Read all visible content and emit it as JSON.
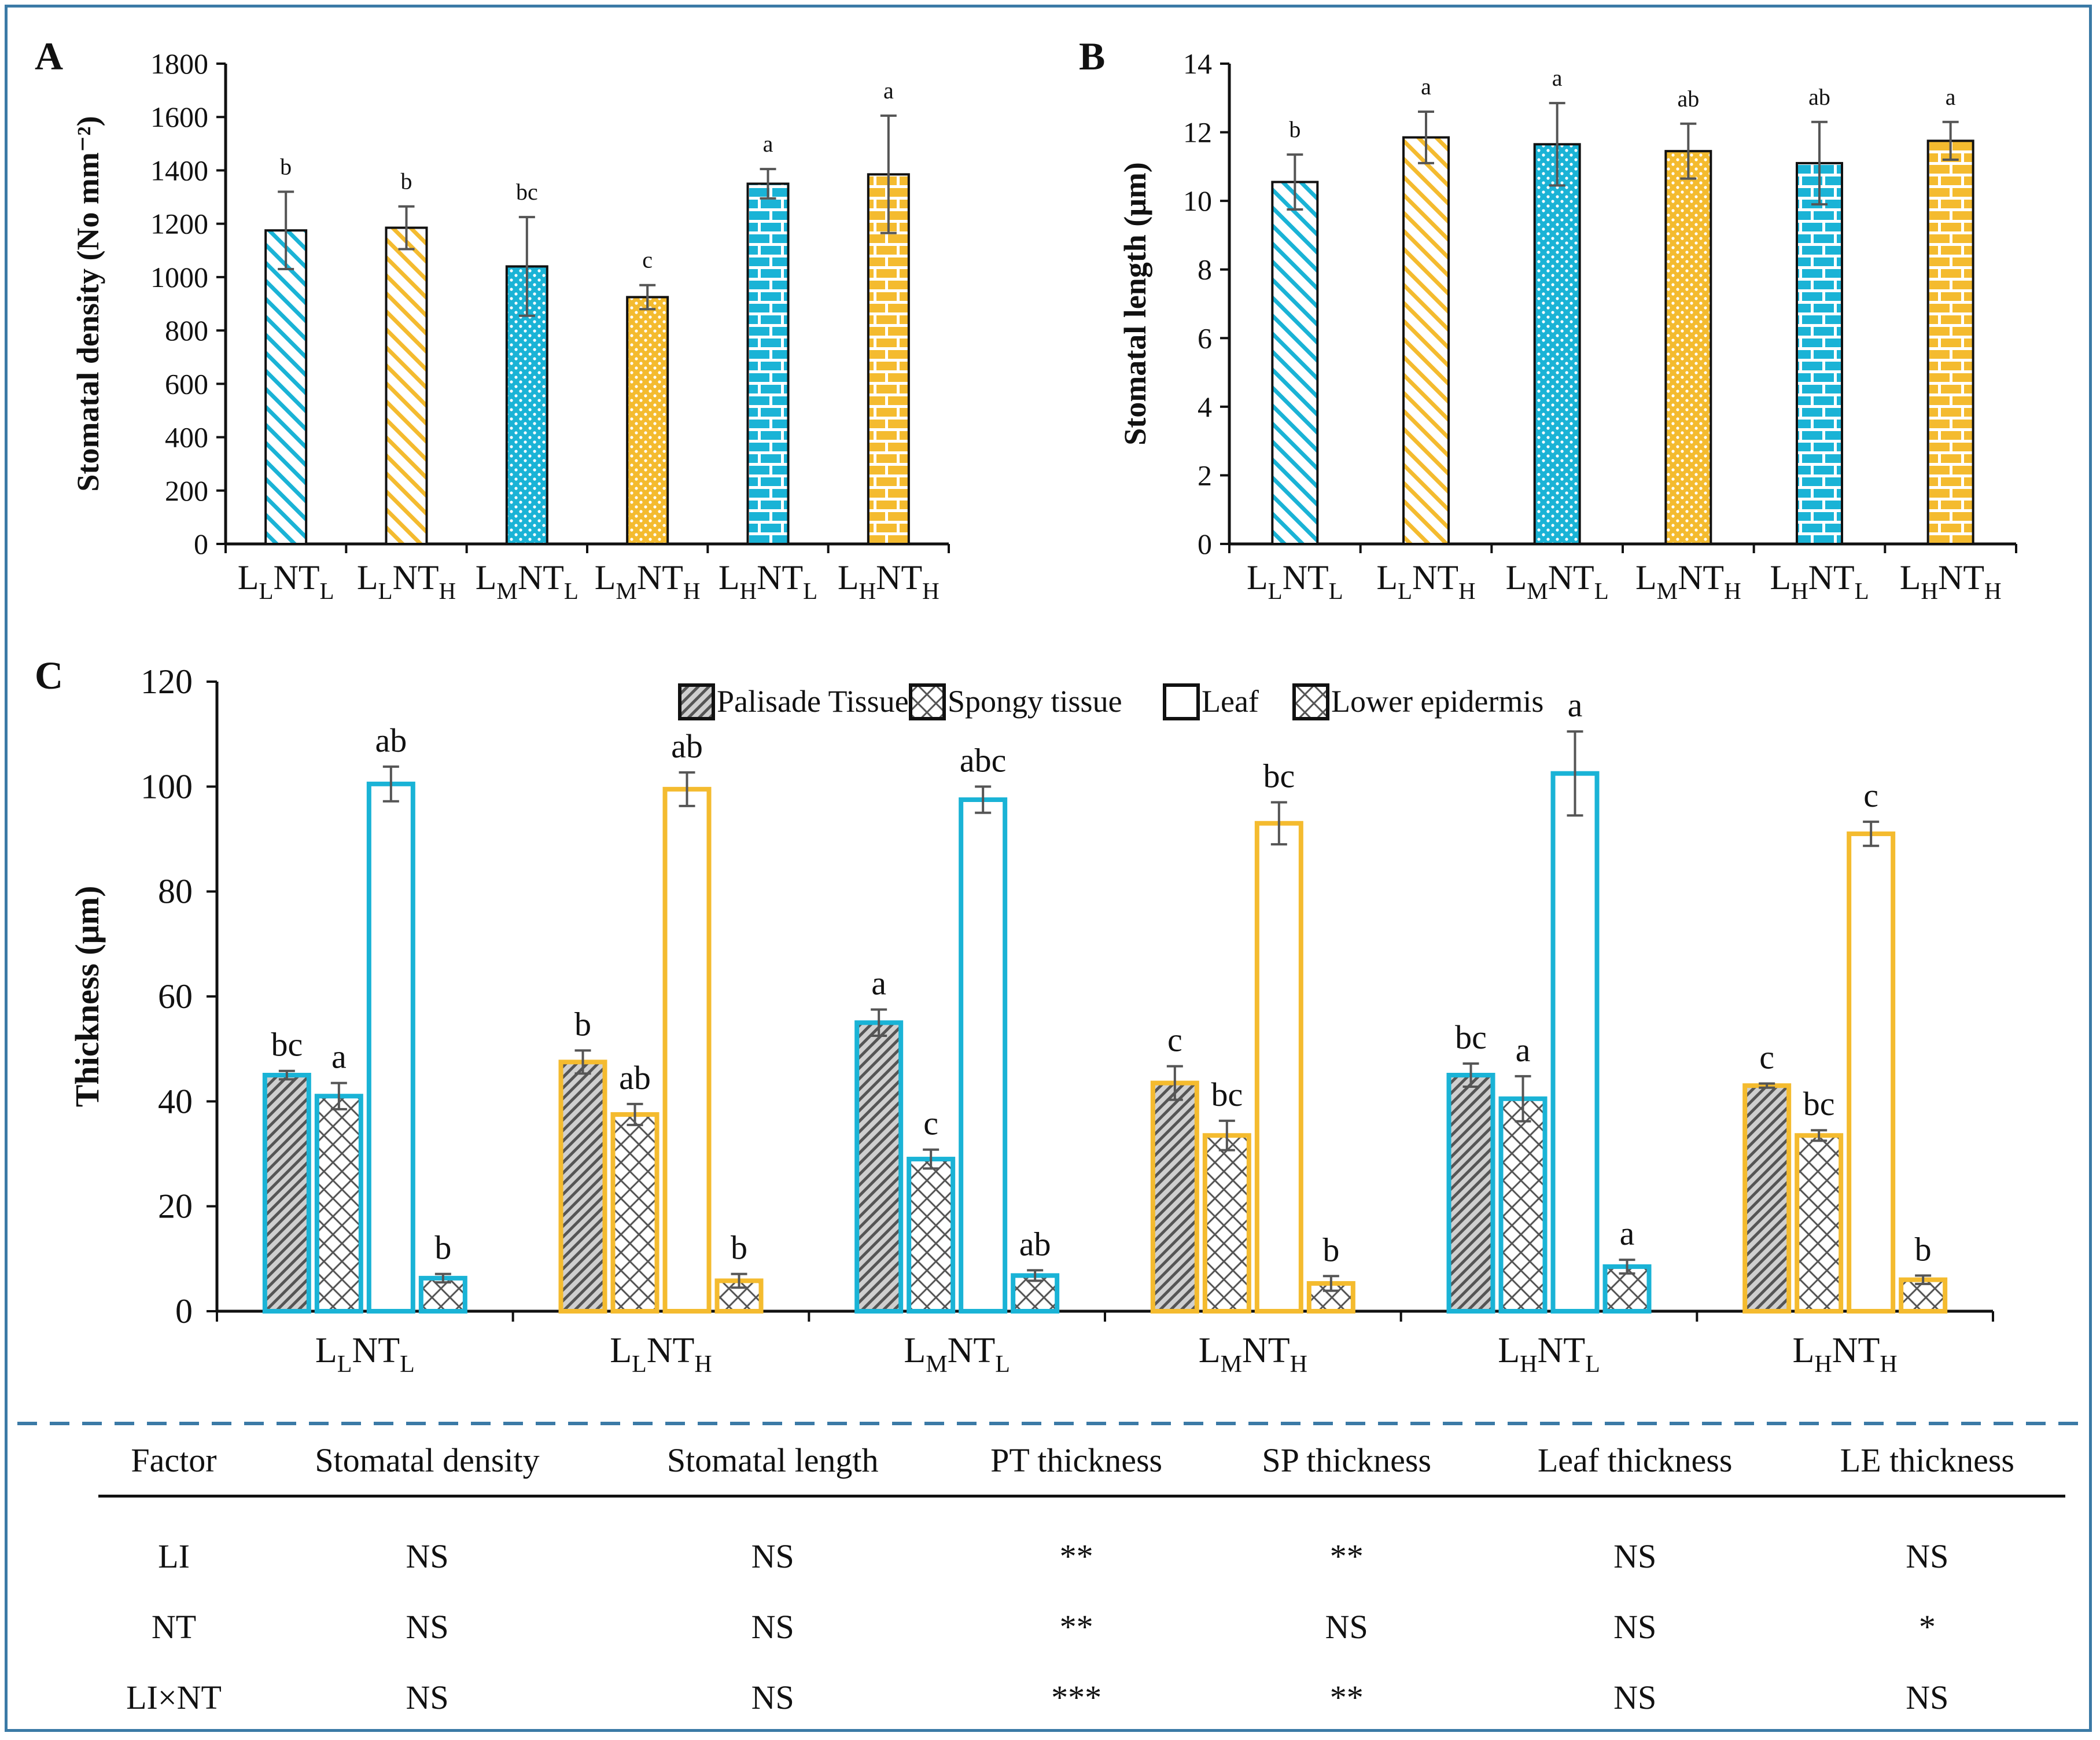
{
  "chart_data": [
    {
      "panel": "A",
      "type": "bar",
      "ylabel": "Stomatal density (No mm⁻²)",
      "ylim": [
        0,
        1800
      ],
      "yticks": [
        0,
        200,
        400,
        600,
        800,
        1000,
        1200,
        1400,
        1600,
        1800
      ],
      "categories": [
        {
          "base": "L",
          "s1": "L",
          "mid": "NT",
          "s2": "L"
        },
        {
          "base": "L",
          "s1": "L",
          "mid": "NT",
          "s2": "H"
        },
        {
          "base": "L",
          "s1": "M",
          "mid": "NT",
          "s2": "L"
        },
        {
          "base": "L",
          "s1": "M",
          "mid": "NT",
          "s2": "H"
        },
        {
          "base": "L",
          "s1": "H",
          "mid": "NT",
          "s2": "L"
        },
        {
          "base": "L",
          "s1": "H",
          "mid": "NT",
          "s2": "H"
        }
      ],
      "values": [
        1175,
        1185,
        1040,
        925,
        1350,
        1385
      ],
      "errors": [
        145,
        80,
        185,
        45,
        55,
        220
      ],
      "letters": [
        "b",
        "b",
        "bc",
        "c",
        "a",
        "a"
      ],
      "patterns": [
        "diag",
        "diag",
        "dots",
        "dots",
        "brick",
        "brick"
      ],
      "colors": [
        "#1ab3d6",
        "#f4bb2f",
        "#1ab3d6",
        "#f4bb2f",
        "#1ab3d6",
        "#f4bb2f"
      ]
    },
    {
      "panel": "B",
      "type": "bar",
      "ylabel": "Stomatal length (μm)",
      "ylim": [
        0,
        14
      ],
      "yticks": [
        0,
        2,
        4,
        6,
        8,
        10,
        12,
        14
      ],
      "categories": [
        {
          "base": "L",
          "s1": "L",
          "mid": "NT",
          "s2": "L"
        },
        {
          "base": "L",
          "s1": "L",
          "mid": "NT",
          "s2": "H"
        },
        {
          "base": "L",
          "s1": "M",
          "mid": "NT",
          "s2": "L"
        },
        {
          "base": "L",
          "s1": "M",
          "mid": "NT",
          "s2": "H"
        },
        {
          "base": "L",
          "s1": "H",
          "mid": "NT",
          "s2": "L"
        },
        {
          "base": "L",
          "s1": "H",
          "mid": "NT",
          "s2": "H"
        }
      ],
      "values": [
        10.55,
        11.85,
        11.65,
        11.45,
        11.1,
        11.75
      ],
      "errors": [
        0.8,
        0.75,
        1.2,
        0.8,
        1.2,
        0.55
      ],
      "letters": [
        "b",
        "a",
        "a",
        "ab",
        "ab",
        "a"
      ],
      "patterns": [
        "diag",
        "diag",
        "dots",
        "dots",
        "brick",
        "brick"
      ],
      "colors": [
        "#1ab3d6",
        "#f4bb2f",
        "#1ab3d6",
        "#f4bb2f",
        "#1ab3d6",
        "#f4bb2f"
      ]
    },
    {
      "panel": "C",
      "type": "bar",
      "ylabel": "Thickness (μm)",
      "ylim": [
        0,
        120
      ],
      "yticks": [
        0,
        20,
        40,
        60,
        80,
        100,
        120
      ],
      "categories": [
        {
          "base": "L",
          "s1": "L",
          "mid": "NT",
          "s2": "L"
        },
        {
          "base": "L",
          "s1": "L",
          "mid": "NT",
          "s2": "H"
        },
        {
          "base": "L",
          "s1": "M",
          "mid": "NT",
          "s2": "L"
        },
        {
          "base": "L",
          "s1": "M",
          "mid": "NT",
          "s2": "H"
        },
        {
          "base": "L",
          "s1": "H",
          "mid": "NT",
          "s2": "L"
        },
        {
          "base": "L",
          "s1": "H",
          "mid": "NT",
          "s2": "H"
        }
      ],
      "group_colors": [
        "#1ab3d6",
        "#f4bb2f",
        "#1ab3d6",
        "#f4bb2f",
        "#1ab3d6",
        "#f4bb2f"
      ],
      "series": [
        {
          "name": "Palisade Tissue",
          "pattern": "hatch",
          "values": [
            45,
            47.5,
            55,
            43.5,
            45,
            43
          ],
          "errors": [
            0.8,
            2.2,
            2.5,
            3.2,
            2.2,
            0.4
          ],
          "letters": [
            "bc",
            "b",
            "a",
            "c",
            "bc",
            "c"
          ]
        },
        {
          "name": "Spongy tissue",
          "pattern": "cross",
          "values": [
            41,
            37.5,
            29,
            33.5,
            40.5,
            33.5
          ],
          "errors": [
            2.5,
            2,
            1.8,
            2.8,
            4.3,
            1
          ],
          "letters": [
            "a",
            "ab",
            "c",
            "bc",
            "a",
            "bc"
          ]
        },
        {
          "name": "Leaf",
          "pattern": "none",
          "values": [
            100.5,
            99.5,
            97.5,
            93,
            102.5,
            91
          ],
          "errors": [
            3.3,
            3.2,
            2.5,
            4,
            8,
            2.3
          ],
          "letters": [
            "ab",
            "ab",
            "abc",
            "bc",
            "a",
            "c"
          ]
        },
        {
          "name": "Lower epidermis",
          "pattern": "cross",
          "values": [
            6.3,
            5.8,
            6.8,
            5.3,
            8.5,
            6
          ],
          "errors": [
            0.8,
            1.3,
            1,
            1.4,
            1.3,
            0.8
          ],
          "letters": [
            "b",
            "b",
            "ab",
            "b",
            "a",
            "b"
          ]
        }
      ]
    }
  ],
  "stats_table": {
    "headers": [
      "Factor",
      "Stomatal density",
      "Stomatal length",
      "PT thickness",
      "SP thickness",
      "Leaf thickness",
      "LE thickness"
    ],
    "rows": [
      [
        "LI",
        "NS",
        "NS",
        "**",
        "**",
        "NS",
        "NS"
      ],
      [
        "NT",
        "NS",
        "NS",
        "**",
        "NS",
        "NS",
        "*"
      ],
      [
        "LI×NT",
        "NS",
        "NS",
        "***",
        "**",
        "NS",
        "NS"
      ]
    ]
  },
  "colors": {
    "frame": "#3b7aa6",
    "cyan": "#1ab3d6",
    "yellow": "#f4bb2f",
    "axis": "#111111",
    "error_bar": "#555555"
  }
}
